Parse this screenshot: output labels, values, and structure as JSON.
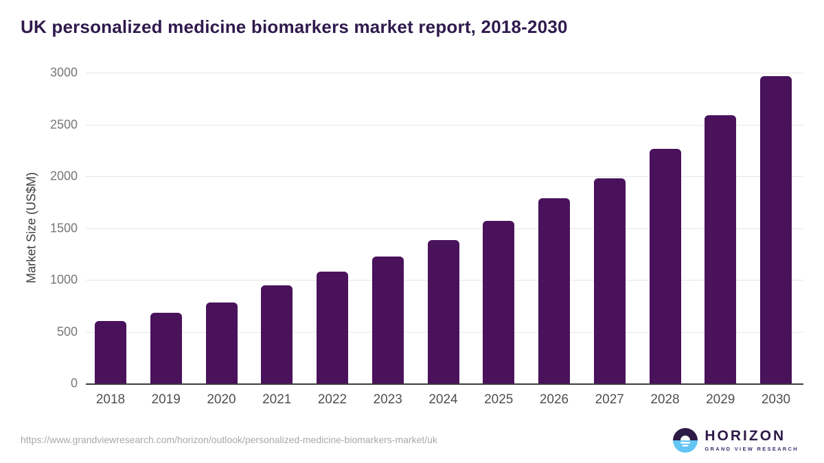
{
  "page": {
    "title": "UK personalized medicine biomarkers market report, 2018-2030",
    "source_url": "https://www.grandviewresearch.com/horizon/outlook/personalized-medicine-biomarkers-market/uk"
  },
  "logo": {
    "name": "HORIZON",
    "subtitle": "GRAND VIEW RESEARCH"
  },
  "colors": {
    "bar": "#49125b",
    "title_text": "#2f1a4d",
    "gridline": "#e7e7e7",
    "axis_line": "#3a3a3a",
    "ytick_text": "#767676",
    "xtick_text": "#4f4f4f",
    "url_text": "#a8a8a8",
    "logo_purple": "#2e1a47",
    "logo_blue": "#62c5f3"
  },
  "chart_data": {
    "type": "bar",
    "title": "UK personalized medicine biomarkers market report, 2018-2030",
    "categories": [
      "2018",
      "2019",
      "2020",
      "2021",
      "2022",
      "2023",
      "2024",
      "2025",
      "2026",
      "2027",
      "2028",
      "2029",
      "2030"
    ],
    "values": [
      605,
      685,
      780,
      950,
      1080,
      1225,
      1385,
      1570,
      1790,
      1980,
      2265,
      2590,
      2965
    ],
    "xlabel": "",
    "ylabel": "Market Size (US$M)",
    "ylim": [
      0,
      3000
    ],
    "yticks": [
      0,
      500,
      1000,
      1500,
      2000,
      2500,
      3000
    ],
    "grid": true,
    "legend_position": "none",
    "bar_color": "#49125b"
  }
}
